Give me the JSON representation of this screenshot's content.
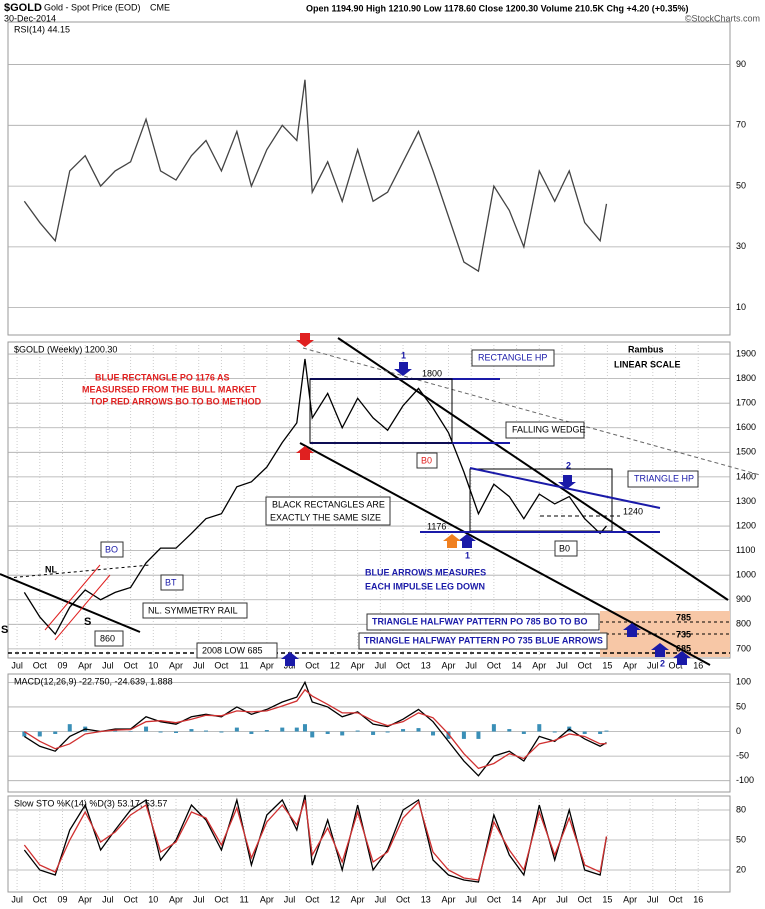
{
  "header": {
    "symbol": "$GOLD",
    "name": "Gold - Spot Price (EOD)",
    "exchange": "CME",
    "date": "30-Dec-2014",
    "quote": "Open 1194.90 High 1210.90 Low 1178.60 Close 1200.30 Volume 210.5K Chg +4.20 (+0.35%)",
    "source": "©StockCharts.com"
  },
  "chart_data": [
    {
      "type": "line",
      "title": "RSI(14) 44.15",
      "xlim": [
        2008.4,
        2016.35
      ],
      "ylim": [
        1,
        104
      ],
      "yticks": [
        10,
        30,
        50,
        70,
        90
      ],
      "grid": true,
      "x": [
        2008.58,
        2008.75,
        2008.92,
        2009.08,
        2009.25,
        2009.42,
        2009.58,
        2009.75,
        2009.92,
        2010.08,
        2010.25,
        2010.42,
        2010.58,
        2010.75,
        2010.92,
        2011.08,
        2011.25,
        2011.42,
        2011.58,
        2011.67,
        2011.75,
        2011.92,
        2012.08,
        2012.25,
        2012.42,
        2012.58,
        2012.75,
        2012.92,
        2013.08,
        2013.25,
        2013.42,
        2013.58,
        2013.75,
        2013.92,
        2014.08,
        2014.25,
        2014.42,
        2014.58,
        2014.75,
        2014.92,
        2014.99
      ],
      "series": [
        {
          "color": "#444444",
          "values": [
            45,
            38,
            32,
            55,
            60,
            50,
            55,
            58,
            72,
            55,
            52,
            60,
            65,
            55,
            68,
            50,
            62,
            70,
            65,
            85,
            48,
            58,
            45,
            62,
            45,
            48,
            58,
            68,
            55,
            40,
            25,
            22,
            50,
            42,
            30,
            55,
            45,
            55,
            38,
            32,
            44.15
          ]
        }
      ]
    },
    {
      "type": "line",
      "title": "$GOLD (Weekly) 1200.30",
      "xlim": [
        2008.4,
        2016.35
      ],
      "ylim": [
        663,
        1949
      ],
      "yticks": [
        700,
        800,
        900,
        1000,
        1100,
        1200,
        1300,
        1400,
        1500,
        1600,
        1700,
        1800,
        1900
      ],
      "grid": true,
      "xticks": [
        {
          "value": 2008.5,
          "label": "Jul"
        },
        {
          "value": 2008.75,
          "label": "Oct"
        },
        {
          "value": 2009,
          "label": "09"
        },
        {
          "value": 2009.25,
          "label": "Apr"
        },
        {
          "value": 2009.5,
          "label": "Jul"
        },
        {
          "value": 2009.75,
          "label": "Oct"
        },
        {
          "value": 2010,
          "label": "10"
        },
        {
          "value": 2010.25,
          "label": "Apr"
        },
        {
          "value": 2010.5,
          "label": "Jul"
        },
        {
          "value": 2010.75,
          "label": "Oct"
        },
        {
          "value": 2011,
          "label": "11"
        },
        {
          "value": 2011.25,
          "label": "Apr"
        },
        {
          "value": 2011.5,
          "label": "Jul"
        },
        {
          "value": 2011.75,
          "label": "Oct"
        },
        {
          "value": 2012,
          "label": "12"
        },
        {
          "value": 2012.25,
          "label": "Apr"
        },
        {
          "value": 2012.5,
          "label": "Jul"
        },
        {
          "value": 2012.75,
          "label": "Oct"
        },
        {
          "value": 2013,
          "label": "13"
        },
        {
          "value": 2013.25,
          "label": "Apr"
        },
        {
          "value": 2013.5,
          "label": "Jul"
        },
        {
          "value": 2013.75,
          "label": "Oct"
        },
        {
          "value": 2014,
          "label": "14"
        },
        {
          "value": 2014.25,
          "label": "Apr"
        },
        {
          "value": 2014.5,
          "label": "Jul"
        },
        {
          "value": 2014.75,
          "label": "Oct"
        },
        {
          "value": 2015,
          "label": "15"
        },
        {
          "value": 2015.25,
          "label": "Apr"
        },
        {
          "value": 2015.5,
          "label": "Jul"
        },
        {
          "value": 2015.75,
          "label": "Oct"
        },
        {
          "value": 2016,
          "label": "16"
        }
      ],
      "x": [
        2008.58,
        2008.75,
        2008.92,
        2009.08,
        2009.25,
        2009.42,
        2009.58,
        2009.75,
        2009.92,
        2010.08,
        2010.25,
        2010.42,
        2010.58,
        2010.75,
        2010.92,
        2011.08,
        2011.25,
        2011.42,
        2011.58,
        2011.67,
        2011.75,
        2011.92,
        2012.08,
        2012.25,
        2012.42,
        2012.58,
        2012.75,
        2012.92,
        2013.08,
        2013.25,
        2013.42,
        2013.58,
        2013.75,
        2013.92,
        2014.08,
        2014.25,
        2014.42,
        2014.58,
        2014.75,
        2014.92,
        2014.99
      ],
      "series": [
        {
          "color": "#000000",
          "values": [
            930,
            830,
            760,
            870,
            940,
            900,
            930,
            950,
            1050,
            1110,
            1110,
            1170,
            1230,
            1250,
            1360,
            1380,
            1440,
            1540,
            1620,
            1880,
            1640,
            1740,
            1600,
            1720,
            1640,
            1590,
            1690,
            1760,
            1680,
            1580,
            1420,
            1250,
            1370,
            1320,
            1230,
            1330,
            1290,
            1320,
            1230,
            1170,
            1200.3
          ]
        }
      ],
      "annotations": [
        "BLUE RECTANGLE PO 1176 AS",
        "MEASURSED FROM THE BULL MARKET",
        "TOP RED ARROWS BO TO BO METHOD",
        "RECTANGLE HP",
        "Rambus",
        "LINEAR SCALE",
        "1800",
        "FALLING WEDGE",
        "B0",
        "BLACK RECTANGLES ARE",
        "EXACTLY THE SAME SIZE",
        "TRIANGLE HP",
        "1240",
        "1176",
        "B0",
        "BLUE ARROWS MEASURES",
        "EACH IMPULSE LEG DOWN",
        "1",
        "2",
        "1",
        "2",
        "NL",
        "BO",
        "BT",
        "NL. SYMMETRY RAIL",
        "860",
        "S",
        "S",
        "2008 LOW 685",
        "TRIANGLE HALFWAY PATTERN PO 785 BO TO BO",
        "TRIANGLE HALFWAY PATTERN PO 735 BLUE ARROWS",
        "785",
        "735",
        "685"
      ]
    },
    {
      "type": "line",
      "title": "MACD(12,26,9) -22.750, -24.639, 1.888",
      "xlim": [
        2008.4,
        2016.35
      ],
      "ylim": [
        -123,
        117
      ],
      "yticks": [
        -100,
        -50,
        0,
        50,
        100
      ],
      "grid": true,
      "x": [
        2008.58,
        2008.75,
        2008.92,
        2009.08,
        2009.25,
        2009.42,
        2009.58,
        2009.75,
        2009.92,
        2010.08,
        2010.25,
        2010.42,
        2010.58,
        2010.75,
        2010.92,
        2011.08,
        2011.25,
        2011.42,
        2011.58,
        2011.67,
        2011.75,
        2011.92,
        2012.08,
        2012.25,
        2012.42,
        2012.58,
        2012.75,
        2012.92,
        2013.08,
        2013.25,
        2013.42,
        2013.58,
        2013.75,
        2013.92,
        2014.08,
        2014.25,
        2014.42,
        2014.58,
        2014.75,
        2014.92,
        2014.99
      ],
      "series": [
        {
          "color": "#3a8fb7",
          "style": "bar",
          "values": [
            -10,
            -10,
            -5,
            15,
            10,
            0,
            2,
            1,
            10,
            -2,
            -3,
            5,
            2,
            -2,
            8,
            -5,
            3,
            8,
            8,
            15,
            -12,
            -5,
            -8,
            2,
            -7,
            -2,
            5,
            7,
            -8,
            -15,
            -15,
            -15,
            15,
            5,
            -5,
            15,
            -2,
            10,
            -5,
            -5,
            1.888
          ]
        },
        {
          "color": "#000000",
          "values": [
            -10,
            -30,
            -40,
            -10,
            5,
            0,
            5,
            5,
            30,
            20,
            15,
            30,
            35,
            30,
            50,
            35,
            45,
            60,
            70,
            100,
            60,
            50,
            30,
            40,
            15,
            10,
            25,
            45,
            20,
            -20,
            -60,
            -90,
            -50,
            -40,
            -60,
            -10,
            -20,
            5,
            -15,
            -30,
            -22.75
          ]
        },
        {
          "color": "#d03030",
          "values": [
            0,
            -20,
            -35,
            -25,
            -5,
            0,
            3,
            4,
            20,
            22,
            18,
            25,
            33,
            32,
            42,
            40,
            42,
            52,
            62,
            85,
            72,
            55,
            38,
            38,
            22,
            12,
            20,
            38,
            28,
            -5,
            -45,
            -75,
            -65,
            -45,
            -55,
            -25,
            -18,
            -5,
            -10,
            -25,
            -24.639
          ]
        }
      ]
    },
    {
      "type": "line",
      "title": "Slow STO %K(14) %D(3) 53.17, 53.57",
      "xlim": [
        2008.4,
        2016.35
      ],
      "ylim": [
        -2,
        94
      ],
      "yticks": [
        20,
        50,
        80
      ],
      "grid": true,
      "xticks": [
        {
          "value": 2008.5,
          "label": "Jul"
        },
        {
          "value": 2008.75,
          "label": "Oct"
        },
        {
          "value": 2009,
          "label": "09"
        },
        {
          "value": 2009.25,
          "label": "Apr"
        },
        {
          "value": 2009.5,
          "label": "Jul"
        },
        {
          "value": 2009.75,
          "label": "Oct"
        },
        {
          "value": 2010,
          "label": "10"
        },
        {
          "value": 2010.25,
          "label": "Apr"
        },
        {
          "value": 2010.5,
          "label": "Jul"
        },
        {
          "value": 2010.75,
          "label": "Oct"
        },
        {
          "value": 2011,
          "label": "11"
        },
        {
          "value": 2011.25,
          "label": "Apr"
        },
        {
          "value": 2011.5,
          "label": "Jul"
        },
        {
          "value": 2011.75,
          "label": "Oct"
        },
        {
          "value": 2012,
          "label": "12"
        },
        {
          "value": 2012.25,
          "label": "Apr"
        },
        {
          "value": 2012.5,
          "label": "Jul"
        },
        {
          "value": 2012.75,
          "label": "Oct"
        },
        {
          "value": 2013,
          "label": "13"
        },
        {
          "value": 2013.25,
          "label": "Apr"
        },
        {
          "value": 2013.5,
          "label": "Jul"
        },
        {
          "value": 2013.75,
          "label": "Oct"
        },
        {
          "value": 2014,
          "label": "14"
        },
        {
          "value": 2014.25,
          "label": "Apr"
        },
        {
          "value": 2014.5,
          "label": "Jul"
        },
        {
          "value": 2014.75,
          "label": "Oct"
        },
        {
          "value": 2015,
          "label": "15"
        },
        {
          "value": 2015.25,
          "label": "Apr"
        },
        {
          "value": 2015.5,
          "label": "Jul"
        },
        {
          "value": 2015.75,
          "label": "Oct"
        },
        {
          "value": 2016,
          "label": "16"
        }
      ],
      "x": [
        2008.58,
        2008.75,
        2008.92,
        2009.08,
        2009.25,
        2009.42,
        2009.58,
        2009.75,
        2009.92,
        2010.08,
        2010.25,
        2010.42,
        2010.58,
        2010.75,
        2010.92,
        2011.08,
        2011.25,
        2011.42,
        2011.58,
        2011.67,
        2011.75,
        2011.92,
        2012.08,
        2012.25,
        2012.42,
        2012.58,
        2012.75,
        2012.92,
        2013.08,
        2013.25,
        2013.42,
        2013.58,
        2013.75,
        2013.92,
        2014.08,
        2014.25,
        2014.42,
        2014.58,
        2014.75,
        2014.92,
        2014.99
      ],
      "series": [
        {
          "color": "#000000",
          "values": [
            40,
            20,
            15,
            60,
            85,
            40,
            60,
            80,
            90,
            30,
            50,
            85,
            70,
            40,
            90,
            25,
            75,
            90,
            60,
            95,
            25,
            70,
            20,
            85,
            20,
            40,
            80,
            90,
            30,
            15,
            10,
            8,
            75,
            35,
            15,
            85,
            30,
            80,
            20,
            15,
            53.17
          ]
        },
        {
          "color": "#d03030",
          "values": [
            45,
            25,
            18,
            50,
            78,
            48,
            58,
            75,
            85,
            38,
            48,
            78,
            72,
            45,
            82,
            32,
            68,
            85,
            65,
            90,
            35,
            62,
            28,
            78,
            28,
            38,
            72,
            88,
            38,
            20,
            12,
            10,
            68,
            40,
            20,
            78,
            35,
            72,
            25,
            18,
            53.57
          ]
        }
      ]
    }
  ]
}
